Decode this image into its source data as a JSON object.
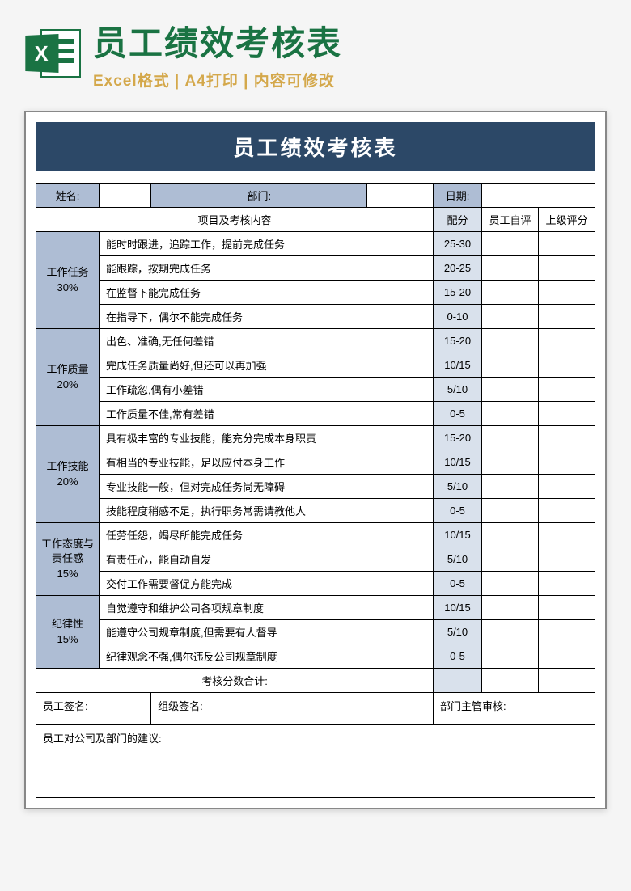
{
  "header": {
    "icon_letter": "X",
    "title": "员工绩效考核表",
    "subtitle": "Excel格式 | A4打印 | 内容可修改",
    "title_color": "#1a7343",
    "subtitle_color": "#d4a84b"
  },
  "form": {
    "title": "员工绩效考核表",
    "title_bg": "#2c4867",
    "header_bg": "#aebdd4",
    "score_bg": "#d9e1ec",
    "info": {
      "name_label": "姓名:",
      "dept_label": "部门:",
      "date_label": "日期:"
    },
    "columns": {
      "content": "项目及考核内容",
      "score": "配分",
      "self": "员工自评",
      "super": "上级评分"
    },
    "categories": [
      {
        "name": "工作任务\n30%",
        "rows": [
          {
            "desc": "能时时跟进，追踪工作，提前完成任务",
            "score": "25-30"
          },
          {
            "desc": "能跟踪，按期完成任务",
            "score": "20-25"
          },
          {
            "desc": "在监督下能完成任务",
            "score": "15-20"
          },
          {
            "desc": "在指导下，偶尔不能完成任务",
            "score": "0-10"
          }
        ]
      },
      {
        "name": "工作质量\n20%",
        "rows": [
          {
            "desc": "出色、准确,无任何差错",
            "score": "15-20"
          },
          {
            "desc": "完成任务质量尚好,但还可以再加强",
            "score": "10/15"
          },
          {
            "desc": "工作疏忽,偶有小差错",
            "score": "5/10"
          },
          {
            "desc": "工作质量不佳,常有差错",
            "score": "0-5"
          }
        ]
      },
      {
        "name": "工作技能\n20%",
        "rows": [
          {
            "desc": "具有极丰富的专业技能，能充分完成本身职责",
            "score": "15-20"
          },
          {
            "desc": "有相当的专业技能，足以应付本身工作",
            "score": "10/15"
          },
          {
            "desc": "专业技能一般，但对完成任务尚无障碍",
            "score": "5/10"
          },
          {
            "desc": "技能程度稍感不足，执行职务常需请教他人",
            "score": "0-5"
          }
        ]
      },
      {
        "name": "工作态度与\n责任感15%",
        "rows": [
          {
            "desc": "任劳任怨，竭尽所能完成任务",
            "score": "10/15"
          },
          {
            "desc": "有责任心，能自动自发",
            "score": "5/10"
          },
          {
            "desc": "交付工作需要督促方能完成",
            "score": "0-5"
          }
        ]
      },
      {
        "name": "纪律性\n15%",
        "rows": [
          {
            "desc": "自觉遵守和维护公司各项规章制度",
            "score": "10/15"
          },
          {
            "desc": "能遵守公司规章制度,但需要有人督导",
            "score": "5/10"
          },
          {
            "desc": "纪律观念不强,偶尔违反公司规章制度",
            "score": "0-5"
          }
        ]
      }
    ],
    "total_label": "考核分数合计:",
    "signatures": {
      "employee": "员工签名:",
      "group": "组级签名:",
      "manager": "部门主管审核:"
    },
    "suggestion_label": "员工对公司及部门的建议:"
  }
}
